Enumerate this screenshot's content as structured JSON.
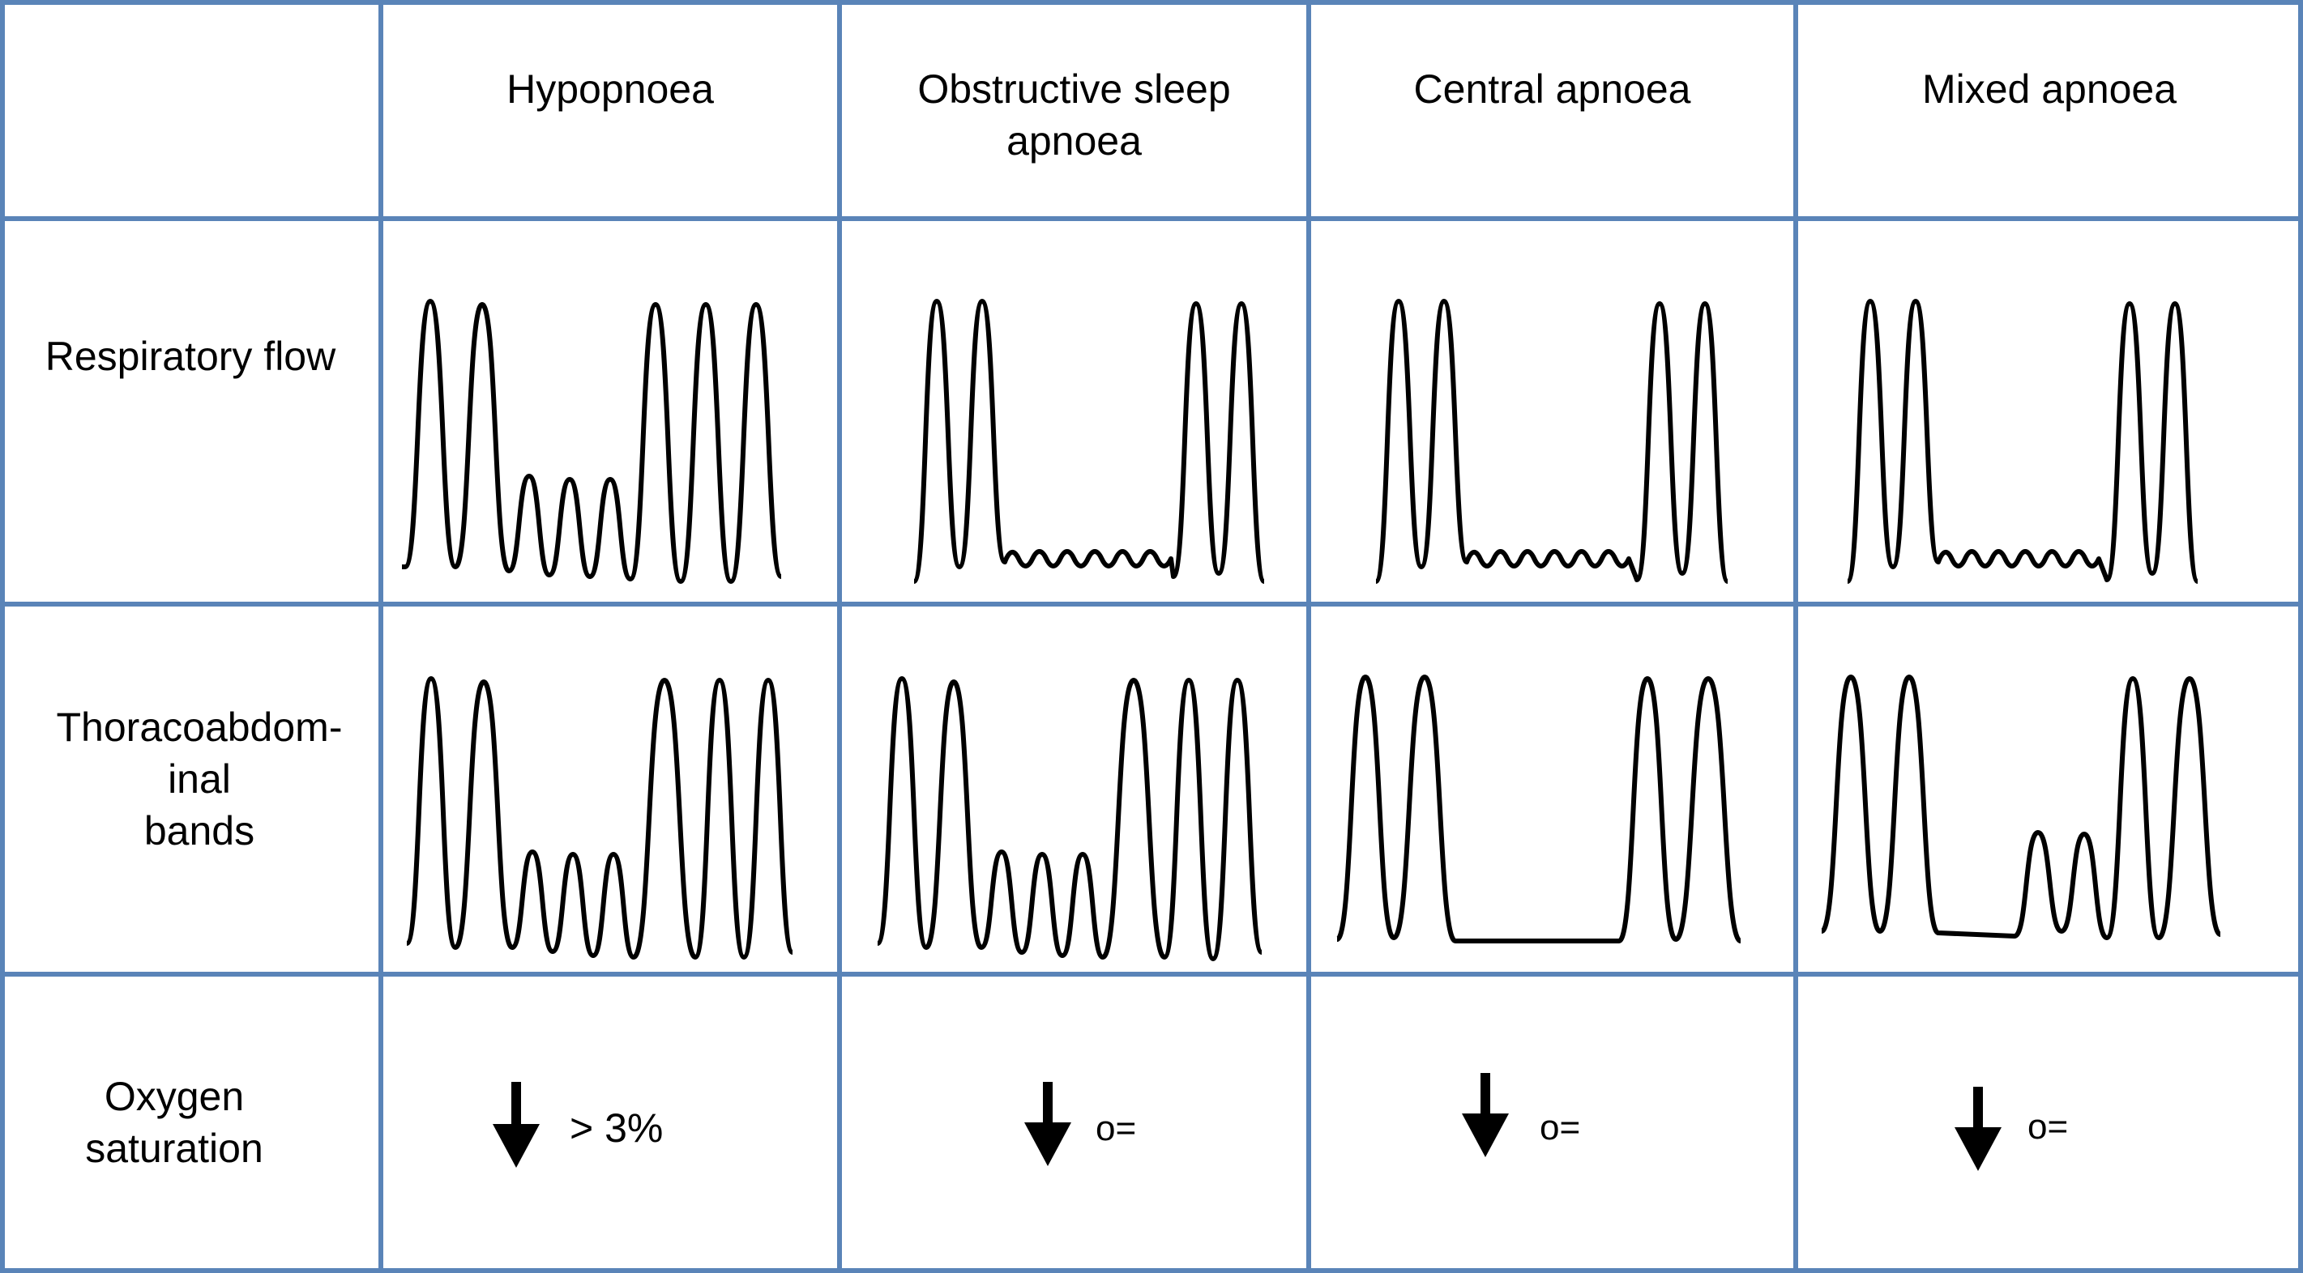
{
  "header": {
    "columns": [
      {
        "label": "Hypopnoea"
      },
      {
        "label": "Obstructive sleep",
        "label2": "apnoea"
      },
      {
        "label": "Central apnoea"
      },
      {
        "label": "Mixed apnoea"
      }
    ]
  },
  "rows": {
    "respiratory_flow": {
      "label": "Respiratory flow"
    },
    "thoracoabdominal": {
      "line1": "Thoracoabdom-",
      "line2": "inal",
      "line3": "bands"
    },
    "oxygen_saturation": {
      "line1": "Oxygen",
      "line2": "saturation"
    }
  },
  "oxygen_values": {
    "hypopnoea": "> 3%",
    "obstructive": "o=",
    "central": "o=",
    "mixed": "o="
  },
  "colors": {
    "grid_line": "#5a84b8",
    "trace": "#000000"
  },
  "icons": {
    "desaturation": "down-arrow-icon"
  }
}
